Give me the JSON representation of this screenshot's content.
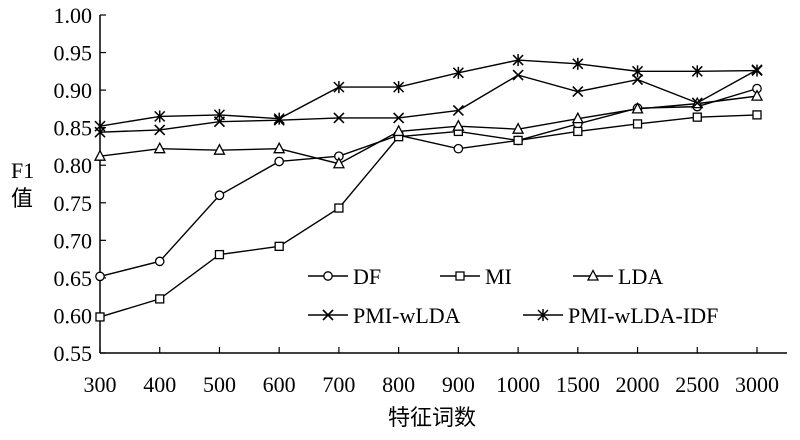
{
  "chart_data": {
    "type": "line",
    "ylabel": "F1\n值",
    "xlabel": "特征词数",
    "ylim": [
      0.55,
      1.0
    ],
    "ytick_step": 0.05,
    "yticks": [
      "0.55",
      "0.60",
      "0.65",
      "0.70",
      "0.75",
      "0.80",
      "0.85",
      "0.90",
      "0.95",
      "1.00"
    ],
    "categories": [
      "300",
      "400",
      "500",
      "600",
      "700",
      "800",
      "900",
      "1000",
      "1500",
      "2000",
      "2500",
      "3000"
    ],
    "grid": false,
    "legend_position": "lower-right",
    "series": [
      {
        "name": "DF",
        "marker": "circle",
        "values": [
          0.652,
          0.672,
          0.76,
          0.805,
          0.812,
          0.84,
          0.822,
          0.833,
          0.855,
          0.876,
          0.878,
          0.902
        ]
      },
      {
        "name": "MI",
        "marker": "square",
        "values": [
          0.598,
          0.622,
          0.681,
          0.692,
          0.743,
          0.838,
          0.845,
          0.833,
          0.845,
          0.855,
          0.864,
          0.867
        ]
      },
      {
        "name": "LDA",
        "marker": "triangle",
        "values": [
          0.812,
          0.822,
          0.82,
          0.822,
          0.802,
          0.845,
          0.852,
          0.848,
          0.862,
          0.875,
          0.882,
          0.892
        ]
      },
      {
        "name": "PMI-wLDA",
        "marker": "x",
        "values": [
          0.844,
          0.847,
          0.858,
          0.86,
          0.863,
          0.863,
          0.873,
          0.92,
          0.898,
          0.914,
          0.883,
          0.927
        ]
      },
      {
        "name": "PMI-wLDA-IDF",
        "marker": "star",
        "values": [
          0.852,
          0.865,
          0.867,
          0.862,
          0.904,
          0.904,
          0.923,
          0.94,
          0.935,
          0.925,
          0.925,
          0.926
        ]
      }
    ]
  }
}
